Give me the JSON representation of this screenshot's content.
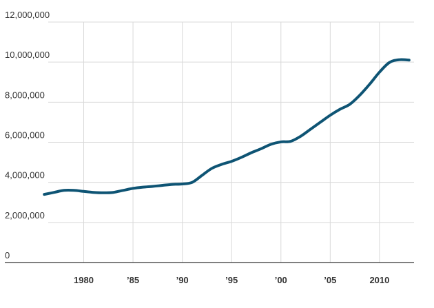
{
  "chart_data": {
    "type": "line",
    "title": "",
    "xlabel": "",
    "ylabel": "",
    "xlim": [
      1972,
      2013.5
    ],
    "ylim": [
      0,
      12000000
    ],
    "grid": true,
    "legend": "none",
    "line_color": "#0e5474",
    "y_ticks": [
      {
        "value": 0,
        "label": "0"
      },
      {
        "value": 2000000,
        "label": "2,000,000"
      },
      {
        "value": 4000000,
        "label": "4,000,000"
      },
      {
        "value": 6000000,
        "label": "6,000,000"
      },
      {
        "value": 8000000,
        "label": "8,000,000"
      },
      {
        "value": 10000000,
        "label": "10,000,000"
      },
      {
        "value": 12000000,
        "label": "12,000,000"
      }
    ],
    "x_ticks": [
      {
        "value": 1980,
        "label": "1980"
      },
      {
        "value": 1985,
        "label": "’85"
      },
      {
        "value": 1990,
        "label": "’90"
      },
      {
        "value": 1995,
        "label": "’95"
      },
      {
        "value": 2000,
        "label": "’00"
      },
      {
        "value": 2005,
        "label": "’05"
      },
      {
        "value": 2010,
        "label": "2010"
      }
    ],
    "series": [
      {
        "x": [
          1976,
          1977,
          1978,
          1979,
          1980,
          1981,
          1982,
          1983,
          1984,
          1985,
          1986,
          1987,
          1988,
          1989,
          1990,
          1991,
          1992,
          1993,
          1994,
          1995,
          1996,
          1997,
          1998,
          1999,
          2000,
          2001,
          2002,
          2003,
          2004,
          2005,
          2006,
          2007,
          2008,
          2009,
          2010,
          2011,
          2012,
          2013
        ],
        "values": [
          3400000,
          3500000,
          3600000,
          3600000,
          3550000,
          3500000,
          3480000,
          3500000,
          3600000,
          3700000,
          3760000,
          3800000,
          3850000,
          3900000,
          3920000,
          4000000,
          4350000,
          4700000,
          4900000,
          5050000,
          5250000,
          5480000,
          5680000,
          5900000,
          6020000,
          6050000,
          6300000,
          6650000,
          7000000,
          7350000,
          7650000,
          7900000,
          8350000,
          8900000,
          9500000,
          9980000,
          10120000,
          10100000
        ]
      }
    ]
  }
}
